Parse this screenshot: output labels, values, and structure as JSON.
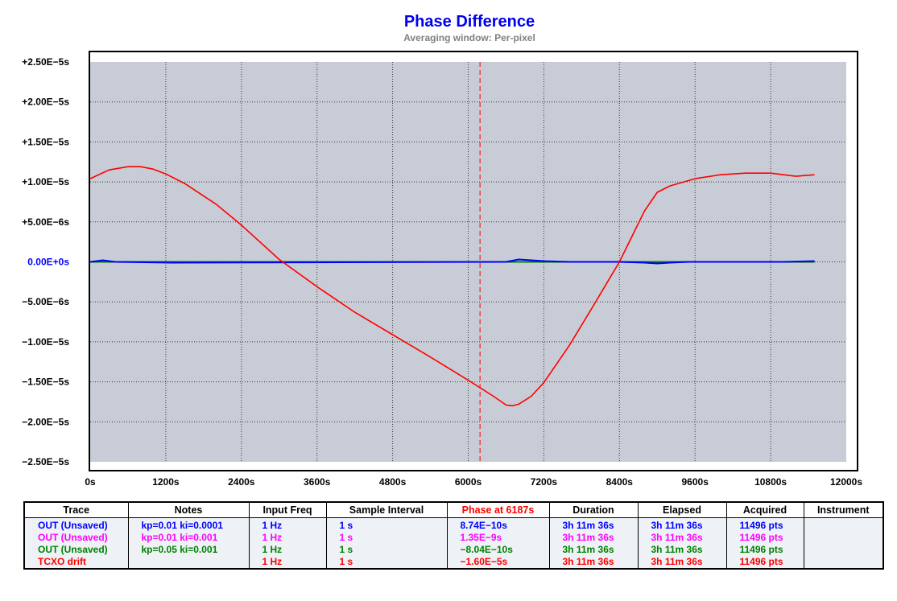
{
  "chart_data": {
    "type": "line",
    "title": "Phase Difference",
    "subtitle": "Averaging window: Per-pixel",
    "xlabel": "",
    "ylabel": "",
    "xlim": [
      0,
      12000
    ],
    "ylim": [
      -2.5e-05,
      2.5e-05
    ],
    "x_ticks": [
      0,
      1200,
      2400,
      3600,
      4800,
      6000,
      7200,
      8400,
      9600,
      10800,
      12000
    ],
    "x_tick_labels": [
      "0s",
      "1200s",
      "2400s",
      "3600s",
      "4800s",
      "6000s",
      "7200s",
      "8400s",
      "9600s",
      "10800s",
      "12000s"
    ],
    "y_ticks": [
      2.5e-05,
      2e-05,
      1.5e-05,
      1e-05,
      5e-06,
      0,
      -5e-06,
      -1e-05,
      -1.5e-05,
      -2e-05,
      -2.5e-05
    ],
    "y_tick_labels": [
      "+2.50E−5s",
      "+2.00E−5s",
      "+1.50E−5s",
      "+1.00E−5s",
      "+5.00E−6s",
      "0.00E+0s",
      "−5.00E−6s",
      "−1.00E−5s",
      "−1.50E−5s",
      "−2.00E−5s",
      "−2.50E−5s"
    ],
    "grid": true,
    "cursor_x": 6187,
    "series": [
      {
        "name": "OUT (Unsaved)",
        "color": "#0000ff",
        "x": [
          0,
          200,
          400,
          1300,
          6600,
          6800,
          7000,
          7200,
          7600,
          8400,
          8800,
          9000,
          9200,
          9500,
          10000,
          11000,
          11496
        ],
        "y": [
          0,
          2e-07,
          0,
          -1e-07,
          0,
          3e-07,
          2e-07,
          1e-07,
          0,
          0,
          -1e-07,
          -2e-07,
          -1e-07,
          0,
          0,
          0,
          1e-07
        ]
      },
      {
        "name": "OUT (Unsaved)",
        "color": "#ff00ff",
        "x": [
          0,
          11496
        ],
        "y": [
          0,
          0
        ]
      },
      {
        "name": "OUT (Unsaved)",
        "color": "#008000",
        "x": [
          0,
          11496
        ],
        "y": [
          0,
          0
        ]
      },
      {
        "name": "TCXO drift",
        "color": "#ff0000",
        "x": [
          0,
          300,
          600,
          800,
          1000,
          1200,
          1500,
          2000,
          2400,
          3000,
          3600,
          4200,
          4800,
          5400,
          6000,
          6400,
          6600,
          6700,
          6800,
          7000,
          7200,
          7600,
          8000,
          8400,
          8800,
          9000,
          9200,
          9600,
          10000,
          10400,
          10800,
          11200,
          11496
        ],
        "y": [
          1.04e-05,
          1.15e-05,
          1.19e-05,
          1.19e-05,
          1.16e-05,
          1.1e-05,
          9.8e-06,
          7.2e-06,
          4.6e-06,
          3e-07,
          -3.1e-06,
          -6.3e-06,
          -9.1e-06,
          -1.19e-05,
          -1.48e-05,
          -1.68e-05,
          -1.79e-05,
          -1.8e-05,
          -1.78e-05,
          -1.68e-05,
          -1.51e-05,
          -1.05e-05,
          -5.3e-06,
          0,
          6.4e-06,
          8.7e-06,
          9.5e-06,
          1.04e-05,
          1.09e-05,
          1.11e-05,
          1.11e-05,
          1.07e-05,
          1.09e-05
        ]
      }
    ]
  },
  "table": {
    "headers": [
      "Trace",
      "Notes",
      "Input Freq",
      "Sample Interval",
      "Phase at 6187s",
      "Duration",
      "Elapsed",
      "Acquired",
      "Instrument"
    ],
    "rows": [
      {
        "color": "#0000ff",
        "cells": [
          "OUT (Unsaved)",
          "kp=0.01 ki=0.0001",
          "1 Hz",
          "1 s",
          "8.74E−10s",
          "3h 11m 36s",
          "3h 11m 36s",
          "11496 pts",
          ""
        ]
      },
      {
        "color": "#ff00ff",
        "cells": [
          "OUT (Unsaved)",
          "kp=0.01 ki=0.001",
          "1 Hz",
          "1 s",
          "1.35E−9s",
          "3h 11m 36s",
          "3h 11m 36s",
          "11496 pts",
          ""
        ]
      },
      {
        "color": "#008000",
        "cells": [
          "OUT (Unsaved)",
          "kp=0.05 ki=0.001",
          "1 Hz",
          "1 s",
          "−8.04E−10s",
          "3h 11m 36s",
          "3h 11m 36s",
          "11496 pts",
          ""
        ]
      },
      {
        "color": "#ff0000",
        "cells": [
          "TCXO drift",
          "",
          "1 Hz",
          "1 s",
          "−1.60E−5s",
          "3h 11m 36s",
          "3h 11m 36s",
          "11496 pts",
          ""
        ]
      }
    ]
  },
  "colors": {
    "plot_bg": "#c8ccd6",
    "cursor": "#ff0000",
    "title": "#0000ee"
  }
}
